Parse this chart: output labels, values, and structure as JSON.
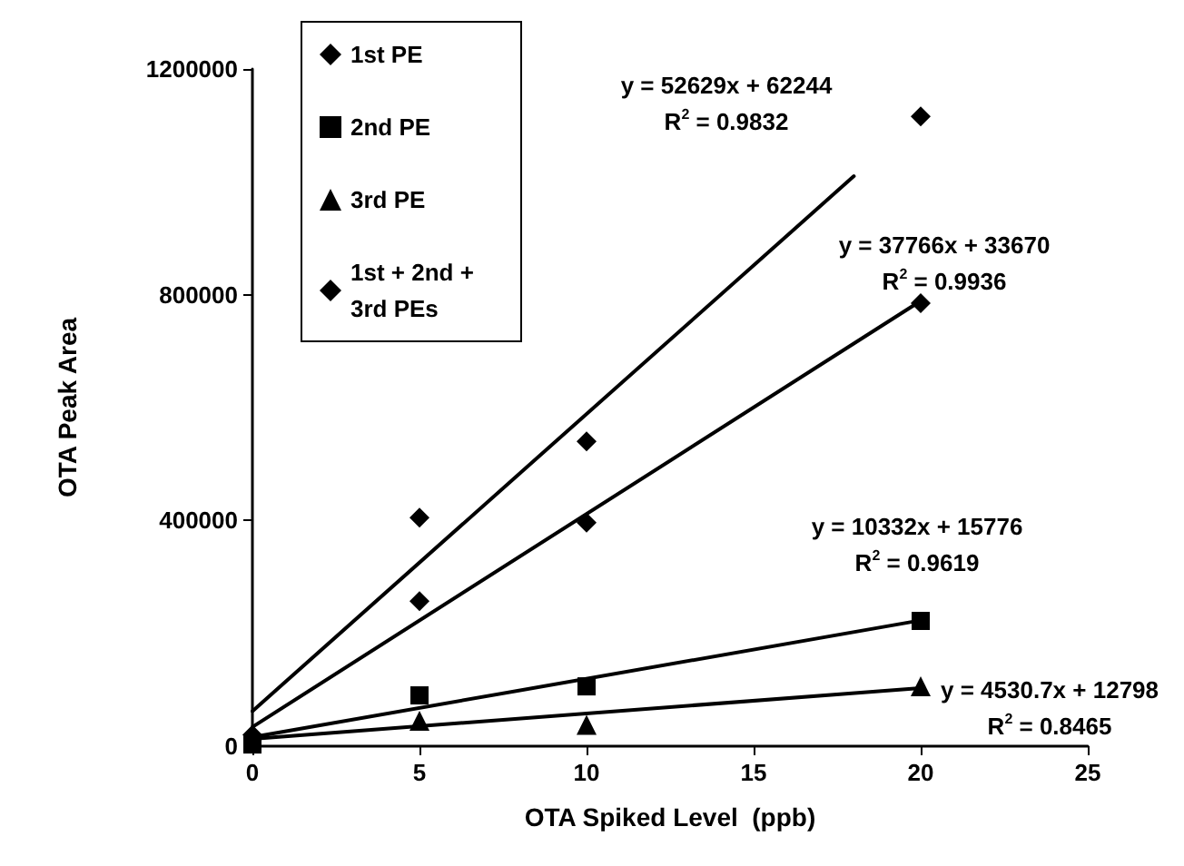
{
  "chart_data": {
    "type": "scatter",
    "xlabel": "OTA Spiked Level  (ppb)",
    "ylabel": "OTA Peak Area",
    "x": [
      0,
      5,
      10,
      20
    ],
    "series": [
      {
        "name": "1st PE",
        "color": "#000000",
        "marker": "diamond",
        "values": [
          20000,
          405000,
          540000,
          1116000
        ]
      },
      {
        "name": "2nd PE",
        "color": "#000000",
        "marker": "square",
        "values": [
          3000,
          90000,
          106000,
          222000
        ]
      },
      {
        "name": "3rd PE",
        "color": "#000000",
        "marker": "triangle",
        "values": [
          null,
          45000,
          38000,
          106000
        ]
      },
      {
        "name": "1st + 2nd + 3rd PEs",
        "color": "#000000",
        "marker": "diamond",
        "values": [
          null,
          257000,
          396000,
          785000
        ]
      },
      {
        "type": "line",
        "color": "#000000",
        "x": [
          0,
          18
        ],
        "values": [
          62000,
          1010000
        ]
      },
      {
        "type": "line",
        "color": "#000000",
        "x": [
          0,
          20
        ],
        "values": [
          34000,
          789000
        ]
      },
      {
        "type": "line",
        "color": "#000000",
        "x": [
          0,
          20
        ],
        "values": [
          16000,
          223000
        ]
      },
      {
        "type": "line",
        "color": "#000000",
        "x": [
          0,
          20
        ],
        "values": [
          13000,
          103000
        ]
      }
    ],
    "annotations": [
      "y = 52629x + 62244\nR$^{2}$ = 0.9832",
      "y = 37766x + 33670\nR$^{2}$ = 0.9936",
      "y = 10332x + 15776\nR$^{2}$ = 0.9619",
      "y = 4530.7x + 12798\nR$^{2}$ = 0.8465"
    ],
    "xlim": [
      0,
      25
    ],
    "xticks": [
      0,
      5,
      10,
      15,
      20,
      25
    ],
    "ylim": [
      0,
      1200000
    ],
    "yticks": [
      0,
      400000,
      800000,
      1200000
    ],
    "grid": false,
    "legend": "top left"
  }
}
